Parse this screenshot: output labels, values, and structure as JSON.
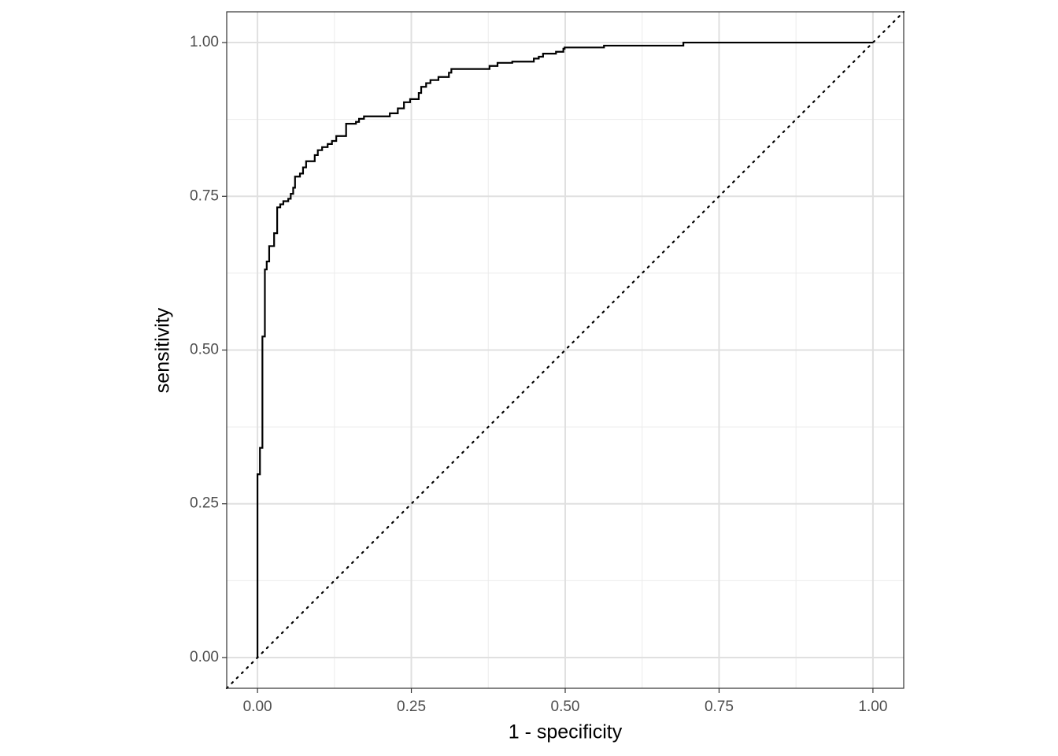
{
  "chart_data": {
    "type": "step-line",
    "xlabel": "1 - specificity",
    "ylabel": "sensitivity",
    "xlim": [
      -0.05,
      1.05
    ],
    "ylim": [
      -0.05,
      1.05
    ],
    "xticks": [
      {
        "value": 0,
        "label": "0.00"
      },
      {
        "value": 0.25,
        "label": "0.25"
      },
      {
        "value": 0.5,
        "label": "0.50"
      },
      {
        "value": 0.75,
        "label": "0.75"
      },
      {
        "value": 1,
        "label": "1.00"
      }
    ],
    "yticks": [
      {
        "value": 0,
        "label": "0.00"
      },
      {
        "value": 0.25,
        "label": "0.25"
      },
      {
        "value": 0.5,
        "label": "0.50"
      },
      {
        "value": 0.75,
        "label": "0.75"
      },
      {
        "value": 1,
        "label": "1.00"
      }
    ],
    "minor_grid": [
      0.125,
      0.375,
      0.625,
      0.875
    ],
    "grid": true,
    "diagonal_reference": true,
    "color": "#000000",
    "x": [
      0,
      0,
      0.004,
      0.004,
      0.008,
      0.008,
      0.012,
      0.012,
      0.015,
      0.015,
      0.019,
      0.019,
      0.027,
      0.027,
      0.032,
      0.032,
      0.037,
      0.037,
      0.042,
      0.042,
      0.05,
      0.05,
      0.054,
      0.054,
      0.058,
      0.058,
      0.061,
      0.061,
      0.069,
      0.069,
      0.074,
      0.074,
      0.079,
      0.079,
      0.093,
      0.093,
      0.098,
      0.098,
      0.105,
      0.105,
      0.114,
      0.114,
      0.121,
      0.121,
      0.128,
      0.128,
      0.144,
      0.144,
      0.16,
      0.16,
      0.165,
      0.165,
      0.173,
      0.173,
      0.215,
      0.215,
      0.228,
      0.228,
      0.238,
      0.238,
      0.248,
      0.248,
      0.262,
      0.262,
      0.266,
      0.266,
      0.274,
      0.274,
      0.281,
      0.281,
      0.294,
      0.294,
      0.311,
      0.311,
      0.315,
      0.315,
      0.377,
      0.377,
      0.39,
      0.39,
      0.414,
      0.414,
      0.449,
      0.449,
      0.457,
      0.457,
      0.464,
      0.464,
      0.485,
      0.485,
      0.497,
      0.497,
      0.499,
      0.499,
      0.563,
      0.563,
      0.692,
      0.692,
      1
    ],
    "values": [
      0,
      0.298,
      0.298,
      0.341,
      0.341,
      0.522,
      0.522,
      0.631,
      0.631,
      0.644,
      0.644,
      0.669,
      0.669,
      0.69,
      0.69,
      0.732,
      0.732,
      0.737,
      0.737,
      0.742,
      0.742,
      0.746,
      0.746,
      0.754,
      0.754,
      0.764,
      0.764,
      0.782,
      0.782,
      0.787,
      0.787,
      0.797,
      0.797,
      0.807,
      0.807,
      0.817,
      0.817,
      0.825,
      0.825,
      0.83,
      0.83,
      0.835,
      0.835,
      0.84,
      0.84,
      0.848,
      0.848,
      0.868,
      0.868,
      0.871,
      0.871,
      0.876,
      0.876,
      0.88,
      0.88,
      0.885,
      0.885,
      0.893,
      0.893,
      0.903,
      0.903,
      0.908,
      0.908,
      0.918,
      0.918,
      0.928,
      0.928,
      0.934,
      0.934,
      0.939,
      0.939,
      0.944,
      0.944,
      0.951,
      0.951,
      0.957,
      0.957,
      0.962,
      0.962,
      0.967,
      0.967,
      0.969,
      0.969,
      0.974,
      0.974,
      0.977,
      0.977,
      0.982,
      0.982,
      0.985,
      0.985,
      0.99,
      0.99,
      0.992,
      0.992,
      0.995,
      0.995,
      1,
      1
    ]
  }
}
